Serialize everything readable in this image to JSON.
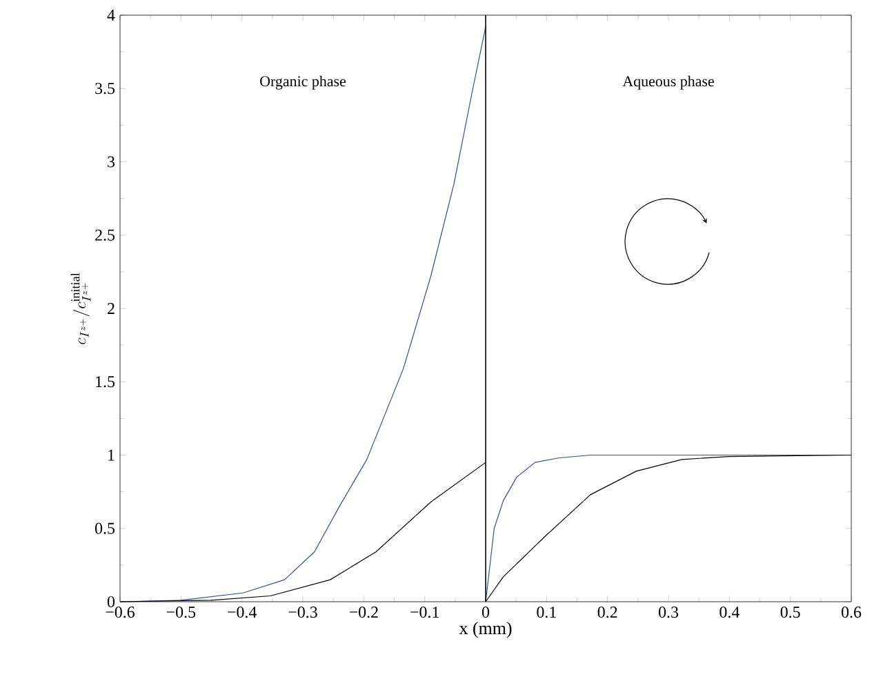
{
  "chart_data": {
    "type": "line",
    "xlabel": "x (mm)",
    "ylabel": "c_{I^{z+}}/c_{I^{z+}}^{\\mathrm{initial}}",
    "xlim": [
      -0.6,
      0.6
    ],
    "ylim": [
      0,
      4
    ],
    "xticks": [
      {
        "value": -0.6,
        "label": "−0.6"
      },
      {
        "value": -0.5,
        "label": "−0.5"
      },
      {
        "value": -0.4,
        "label": "−0.4"
      },
      {
        "value": -0.3,
        "label": "−0.3"
      },
      {
        "value": -0.2,
        "label": "−0.2"
      },
      {
        "value": -0.1,
        "label": "−0.1"
      },
      0,
      0.1,
      0.2,
      0.3,
      0.4,
      0.5,
      0.6
    ],
    "yticks": [
      0,
      0.5,
      1,
      1.5,
      2,
      2.5,
      3,
      3.5,
      4
    ],
    "series": [
      {
        "color": "#2e4da3",
        "x": [
          -0.6,
          -0.5,
          -0.398,
          -0.33,
          -0.281,
          -0.24,
          -0.195,
          -0.135,
          -0.09,
          -0.052,
          -0.022,
          0
        ],
        "values": [
          0,
          0.01,
          0.06,
          0.15,
          0.34,
          0.65,
          0.97,
          1.59,
          2.22,
          2.85,
          3.48,
          3.92
        ]
      },
      {
        "color": "#2e4da3",
        "x": [
          0,
          0.014,
          0.029,
          0.051,
          0.081,
          0.119,
          0.172,
          0.3,
          0.6
        ],
        "values": [
          0,
          0.5,
          0.69,
          0.85,
          0.95,
          0.98,
          1,
          1,
          1
        ]
      },
      {
        "color": "#000000",
        "x": [
          -0.6,
          -0.45,
          -0.353,
          -0.255,
          -0.18,
          -0.09,
          0
        ],
        "values": [
          0,
          0.01,
          0.04,
          0.15,
          0.34,
          0.68,
          0.95
        ]
      },
      {
        "color": "#000000",
        "x": [
          0,
          0.029,
          0.096,
          0.172,
          0.247,
          0.322,
          0.398,
          0.6
        ],
        "values": [
          0,
          0.17,
          0.44,
          0.73,
          0.89,
          0.97,
          0.99,
          1
        ]
      }
    ],
    "ref_lines": [
      {
        "axis": "x",
        "value": 0,
        "color": "#000000"
      }
    ],
    "annotations": [
      "Organic phase",
      "Aqueous phase"
    ],
    "grid": false,
    "marker": "none",
    "line_style": "solid"
  }
}
